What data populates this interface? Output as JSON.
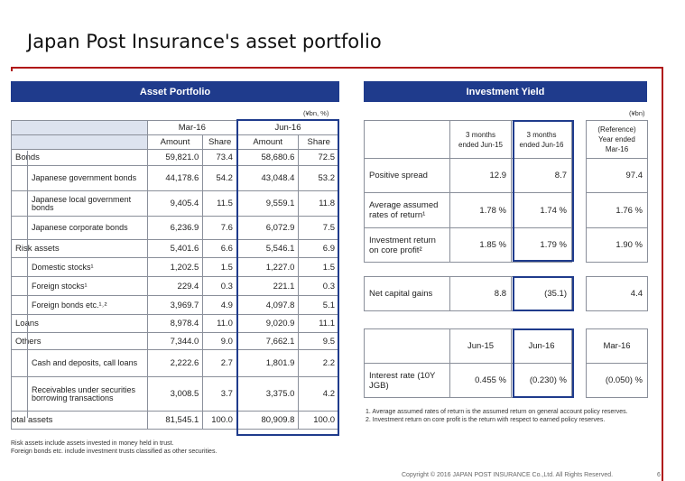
{
  "title": "Japan Post Insurance's asset portfolio",
  "asset": {
    "header": "Asset Portfolio",
    "unit": "(¥bn, %)",
    "periods": [
      "Mar-16",
      "Jun-16"
    ],
    "cols": [
      "Amount",
      "Share",
      "Amount",
      "Share"
    ],
    "rows": [
      {
        "label": "Bonds",
        "v": [
          "59,821.0",
          "73.4",
          "58,680.6",
          "72.5"
        ]
      },
      {
        "label": "Japanese government bonds",
        "v": [
          "44,178.6",
          "54.2",
          "43,048.4",
          "53.2"
        ]
      },
      {
        "label": "Japanese local government bonds",
        "v": [
          "9,405.4",
          "11.5",
          "9,559.1",
          "11.8"
        ]
      },
      {
        "label": "Japanese corporate bonds",
        "v": [
          "6,236.9",
          "7.6",
          "6,072.9",
          "7.5"
        ]
      },
      {
        "label": "Risk assets",
        "v": [
          "5,401.6",
          "6.6",
          "5,546.1",
          "6.9"
        ]
      },
      {
        "label": "Domestic stocks¹",
        "v": [
          "1,202.5",
          "1.5",
          "1,227.0",
          "1.5"
        ]
      },
      {
        "label": "Foreign stocks¹",
        "v": [
          "229.4",
          "0.3",
          "221.1",
          "0.3"
        ]
      },
      {
        "label": "Foreign bonds etc.¹˒²",
        "v": [
          "3,969.7",
          "4.9",
          "4,097.8",
          "5.1"
        ]
      },
      {
        "label": "Loans",
        "v": [
          "8,978.4",
          "11.0",
          "9,020.9",
          "11.1"
        ]
      },
      {
        "label": "Others",
        "v": [
          "7,344.0",
          "9.0",
          "7,662.1",
          "9.5"
        ]
      },
      {
        "label": "Cash and deposits, call loans",
        "v": [
          "2,222.6",
          "2.7",
          "1,801.9",
          "2.2"
        ]
      },
      {
        "label": "Receivables under securities borrowing transactions",
        "v": [
          "3,008.5",
          "3.7",
          "3,375.0",
          "4.2"
        ]
      },
      {
        "label": "otal assets",
        "v": [
          "81,545.1",
          "100.0",
          "80,909.8",
          "100.0"
        ]
      }
    ],
    "footnotes": [
      "Risk assets include assets invested in money held in trust.",
      "Foreign bonds etc. include investment trusts classified as other securities."
    ]
  },
  "yield": {
    "header": "Investment Yield",
    "unit": "(¥bn)",
    "col_headers": [
      "3 months ended Jun-15",
      "3 months ended Jun-16",
      "(Reference) Year ended Mar-16"
    ],
    "rows": [
      {
        "label": "Positive spread",
        "v": [
          "12.9",
          "8.7",
          "97.4"
        ]
      },
      {
        "label": "Average assumed rates of return¹",
        "v": [
          "1.78 %",
          "1.74 %",
          "1.76 %"
        ]
      },
      {
        "label": "Investment return on core profit²",
        "v": [
          "1.85 %",
          "1.79 %",
          "1.90 %"
        ]
      }
    ],
    "capital_gains": {
      "label": "Net capital gains",
      "v": [
        "8.8",
        "(35.1)",
        "4.4"
      ]
    },
    "rate_headers": [
      "Jun-15",
      "Jun-16",
      "Mar-16"
    ],
    "interest": {
      "label": "Interest rate (10Y JGB)",
      "v": [
        "0.455 %",
        "(0.230) %",
        "(0.050) %"
      ]
    },
    "notes": [
      "1.  Average assumed rates of return is the assumed return on general  account policy reserves.",
      "2.  Investment return on core profit is the return with respect to earned policy reserves."
    ]
  },
  "footer": {
    "copyright": "Copyright © 2016 JAPAN POST INSURANCE Co.,Ltd. All Rights Reserved.",
    "page": "6"
  }
}
